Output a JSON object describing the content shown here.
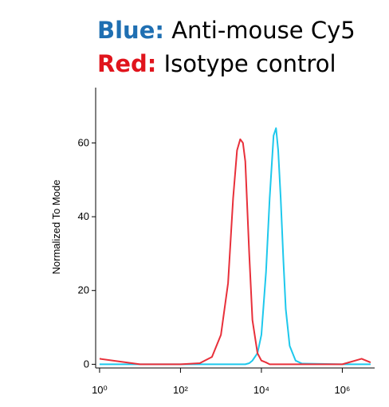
{
  "chart_data": {
    "type": "line",
    "y_label": "Normalized To Mode",
    "x": [
      1,
      10,
      100,
      300,
      600,
      1000,
      1500,
      2000,
      2500,
      3000,
      3500,
      4000,
      5000,
      6000,
      8000,
      10000,
      13000,
      16000,
      20000,
      23000,
      26000,
      30000,
      35000,
      40000,
      50000,
      70000,
      100000,
      1000000,
      3000000,
      5000000
    ],
    "series": [
      {
        "legend_label": "Blue:",
        "label_color": "#1f6fb2",
        "name": "Anti-mouse Cy5",
        "color": "#1ec8ec",
        "values": [
          0,
          0,
          0,
          0,
          0,
          0,
          0,
          0,
          0,
          0,
          0,
          0,
          0.3,
          1,
          3,
          8,
          25,
          45,
          62,
          64,
          58,
          45,
          28,
          15,
          5,
          1,
          0.2,
          0,
          0,
          0
        ]
      },
      {
        "legend_label": "Red:",
        "label_color": "#e0141c",
        "name": "Isotype control",
        "color": "#e8303a",
        "values": [
          1.5,
          0,
          0,
          0.3,
          2,
          8,
          22,
          45,
          58,
          61,
          60,
          55,
          30,
          12,
          3,
          1,
          0.5,
          0,
          0,
          0,
          0,
          0,
          0,
          0,
          0,
          0,
          0,
          0,
          1.5,
          0.5
        ]
      }
    ],
    "log_x": true,
    "xlim": [
      0.8,
      6300000
    ],
    "xticks": [
      {
        "value": 1,
        "label": "10⁰"
      },
      {
        "value": 100,
        "label": "10²"
      },
      {
        "value": 10000,
        "label": "10⁴"
      },
      {
        "value": 1000000,
        "label": "10⁶"
      }
    ],
    "ylim": [
      -1,
      75
    ],
    "yticks": [
      0,
      20,
      40,
      60
    ]
  }
}
